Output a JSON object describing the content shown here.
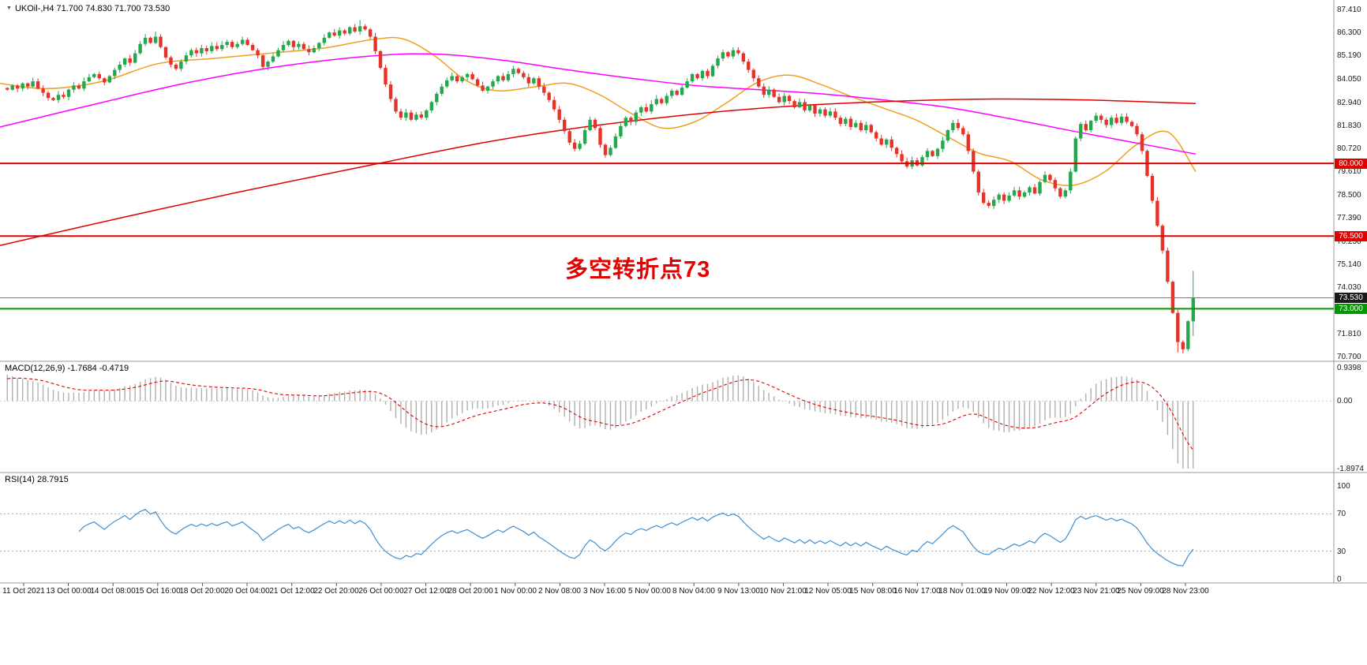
{
  "header": {
    "dropdown_icon": "▼",
    "title": "UKOil-,H4  71.700 74.830 71.700 73.530"
  },
  "panels": {
    "macd": {
      "label": "MACD(12,26,9) -1.7684 -0.4719"
    },
    "rsi": {
      "label": "RSI(14) 28.7915"
    }
  },
  "colors": {
    "up": "#23a84e",
    "down": "#e6332a",
    "macd_hist": "#b0b0b0",
    "macd_signal": "#e00000",
    "rsi_line": "#3f8fd2",
    "divider": "#9a9a9a",
    "current_line": "#777777",
    "current_tag_bg": "#1a1a1a",
    "axis_text": "#1a1a1a"
  },
  "chart_data": {
    "type": "candlestick",
    "title": "UKOil-,H4",
    "symbol": "UKOil-",
    "timeframe": "H4",
    "current_bar": {
      "open": 71.7,
      "high": 74.83,
      "low": 71.7,
      "close": 73.53
    },
    "ylim": [
      70.7,
      87.41
    ],
    "closes": [
      83.55,
      83.75,
      83.6,
      83.85,
      83.7,
      83.95,
      83.6,
      83.4,
      83.15,
      83.05,
      83.3,
      83.2,
      83.55,
      83.75,
      83.6,
      83.95,
      84.15,
      84.3,
      84.1,
      83.9,
      84.2,
      84.5,
      84.75,
      85.05,
      84.85,
      85.3,
      85.75,
      86.05,
      85.8,
      86.1,
      85.6,
      85.1,
      84.75,
      84.55,
      84.9,
      85.2,
      85.45,
      85.3,
      85.55,
      85.4,
      85.65,
      85.5,
      85.7,
      85.85,
      85.6,
      85.75,
      85.95,
      85.7,
      85.45,
      85.2,
      84.65,
      84.9,
      85.15,
      85.45,
      85.7,
      85.9,
      85.6,
      85.75,
      85.5,
      85.35,
      85.55,
      85.8,
      86.05,
      86.3,
      86.15,
      86.4,
      86.25,
      86.55,
      86.35,
      86.6,
      86.45,
      86.1,
      85.4,
      84.6,
      83.8,
      83.1,
      82.5,
      82.2,
      82.45,
      82.1,
      82.35,
      82.2,
      82.55,
      82.95,
      83.35,
      83.7,
      84.0,
      84.2,
      83.95,
      84.15,
      84.3,
      84.05,
      83.75,
      83.5,
      83.7,
      83.95,
      84.2,
      84.0,
      84.3,
      84.55,
      84.35,
      84.15,
      83.85,
      84.1,
      83.7,
      83.4,
      83.05,
      82.6,
      82.1,
      81.55,
      81.0,
      80.7,
      80.95,
      81.6,
      82.1,
      81.7,
      80.9,
      80.4,
      80.75,
      81.3,
      81.8,
      82.2,
      82.0,
      82.45,
      82.7,
      82.5,
      82.85,
      83.1,
      82.9,
      83.25,
      83.5,
      83.3,
      83.65,
      83.95,
      84.3,
      84.1,
      84.45,
      84.2,
      84.7,
      85.05,
      85.35,
      85.15,
      85.45,
      85.3,
      84.9,
      84.5,
      84.1,
      83.7,
      83.3,
      83.55,
      83.2,
      82.95,
      83.25,
      83.0,
      82.7,
      82.95,
      82.55,
      82.8,
      82.4,
      82.6,
      82.3,
      82.5,
      82.2,
      81.9,
      82.15,
      81.75,
      81.95,
      81.6,
      81.85,
      81.5,
      81.2,
      80.9,
      81.15,
      80.75,
      80.45,
      80.1,
      79.85,
      80.15,
      79.9,
      80.3,
      80.6,
      80.35,
      80.7,
      81.1,
      81.6,
      81.95,
      81.7,
      81.4,
      80.6,
      79.6,
      78.6,
      78.1,
      77.95,
      78.25,
      78.5,
      78.2,
      78.45,
      78.7,
      78.4,
      78.6,
      78.85,
      78.55,
      79.1,
      79.45,
      79.2,
      78.8,
      78.4,
      78.7,
      79.6,
      81.2,
      81.9,
      81.6,
      82.05,
      82.3,
      82.1,
      81.85,
      82.2,
      81.95,
      82.25,
      82.0,
      81.8,
      81.4,
      80.6,
      79.4,
      78.2,
      77.0,
      75.8,
      74.3,
      72.8,
      71.4,
      71.05,
      72.4,
      73.53
    ],
    "wick_overrides": {
      "29": {
        "high": 86.35
      },
      "69": {
        "high": 86.9
      },
      "229": {
        "low": 70.9
      },
      "230": {
        "low": 70.85
      },
      "232": {
        "high": 74.83,
        "low": 71.7
      }
    },
    "moving_averages": [
      {
        "name": "ma-fast-orange",
        "color": "#f0a020",
        "points": [
          [
            0,
            83.85
          ],
          [
            60,
            83.6
          ],
          [
            130,
            83.95
          ],
          [
            200,
            84.8
          ],
          [
            270,
            85.05
          ],
          [
            340,
            85.3
          ],
          [
            410,
            85.55
          ],
          [
            470,
            85.95
          ],
          [
            510,
            86.0
          ],
          [
            550,
            85.2
          ],
          [
            590,
            84.0
          ],
          [
            630,
            83.5
          ],
          [
            680,
            83.7
          ],
          [
            720,
            83.85
          ],
          [
            760,
            83.3
          ],
          [
            800,
            82.4
          ],
          [
            840,
            81.7
          ],
          [
            880,
            82.0
          ],
          [
            920,
            82.9
          ],
          [
            960,
            83.9
          ],
          [
            1000,
            84.25
          ],
          [
            1040,
            83.8
          ],
          [
            1080,
            83.2
          ],
          [
            1120,
            82.65
          ],
          [
            1160,
            82.1
          ],
          [
            1200,
            81.3
          ],
          [
            1240,
            80.5
          ],
          [
            1280,
            80.1
          ],
          [
            1320,
            79.2
          ],
          [
            1360,
            78.95
          ],
          [
            1400,
            79.6
          ],
          [
            1440,
            80.9
          ],
          [
            1480,
            81.5
          ],
          [
            1515,
            79.6
          ]
        ]
      },
      {
        "name": "ma-mid-magenta",
        "color": "#ff00ff",
        "points": [
          [
            0,
            81.75
          ],
          [
            120,
            82.85
          ],
          [
            240,
            83.9
          ],
          [
            360,
            84.7
          ],
          [
            480,
            85.2
          ],
          [
            560,
            85.25
          ],
          [
            640,
            84.95
          ],
          [
            720,
            84.5
          ],
          [
            800,
            84.1
          ],
          [
            880,
            83.75
          ],
          [
            960,
            83.55
          ],
          [
            1040,
            83.35
          ],
          [
            1120,
            83.05
          ],
          [
            1200,
            82.7
          ],
          [
            1280,
            82.15
          ],
          [
            1360,
            81.55
          ],
          [
            1430,
            81.05
          ],
          [
            1515,
            80.45
          ]
        ]
      },
      {
        "name": "ma-slow-red",
        "color": "#e00000",
        "points": [
          [
            0,
            76.05
          ],
          [
            150,
            77.35
          ],
          [
            300,
            78.6
          ],
          [
            480,
            80.0
          ],
          [
            620,
            81.05
          ],
          [
            760,
            81.85
          ],
          [
            900,
            82.45
          ],
          [
            1020,
            82.8
          ],
          [
            1140,
            83.0
          ],
          [
            1260,
            83.1
          ],
          [
            1380,
            83.05
          ],
          [
            1460,
            82.95
          ],
          [
            1515,
            82.88
          ]
        ]
      }
    ],
    "horizontal_levels": [
      {
        "price": 80.0,
        "label": "80.000",
        "color": "#e00000",
        "width": 2
      },
      {
        "price": 76.5,
        "label": "76.500",
        "color": "#e00000",
        "width": 2
      },
      {
        "price": 73.0,
        "label": "73.000",
        "color": "#009a00",
        "width": 2
      }
    ],
    "current_price_line": {
      "price": 73.53,
      "label": "73.530"
    },
    "annotation": {
      "text": "多空转折点73",
      "color": "#e60000"
    },
    "indicators": [
      {
        "name": "MACD",
        "params": [
          12,
          26,
          9
        ],
        "values": {
          "macd": -1.7684,
          "signal": -0.4719
        },
        "axis": [
          0.9398,
          0.0,
          -1.8974
        ],
        "axis_labels": [
          "0.9398",
          "0.00",
          "-1.8974"
        ]
      },
      {
        "name": "RSI",
        "params": [
          14
        ],
        "value": 28.7915,
        "levels": [
          70,
          30
        ],
        "axis": [
          100,
          70,
          30,
          0
        ],
        "axis_labels": [
          "100",
          "70",
          "30",
          "0"
        ]
      }
    ],
    "y_axis_labels": [
      "87.410",
      "86.300",
      "85.190",
      "84.050",
      "82.940",
      "81.830",
      "80.720",
      "79.610",
      "78.500",
      "77.390",
      "76.250",
      "75.140",
      "74.030",
      "71.810",
      "70.700"
    ],
    "x_axis_labels": [
      "11 Oct 2021",
      "13 Oct 00:00",
      "14 Oct 08:00",
      "15 Oct 16:00",
      "18 Oct 20:00",
      "20 Oct 04:00",
      "21 Oct 12:00",
      "22 Oct 20:00",
      "26 Oct 00:00",
      "27 Oct 12:00",
      "28 Oct 20:00",
      "1 Nov 00:00",
      "2 Nov 08:00",
      "3 Nov 16:00",
      "5 Nov 00:00",
      "8 Nov 04:00",
      "9 Nov 13:00",
      "10 Nov 21:00",
      "12 Nov 05:00",
      "15 Nov 08:00",
      "16 Nov 17:00",
      "18 Nov 01:00",
      "19 Nov 09:00",
      "22 Nov 12:00",
      "23 Nov 21:00",
      "25 Nov 09:00",
      "28 Nov 23:00"
    ]
  }
}
